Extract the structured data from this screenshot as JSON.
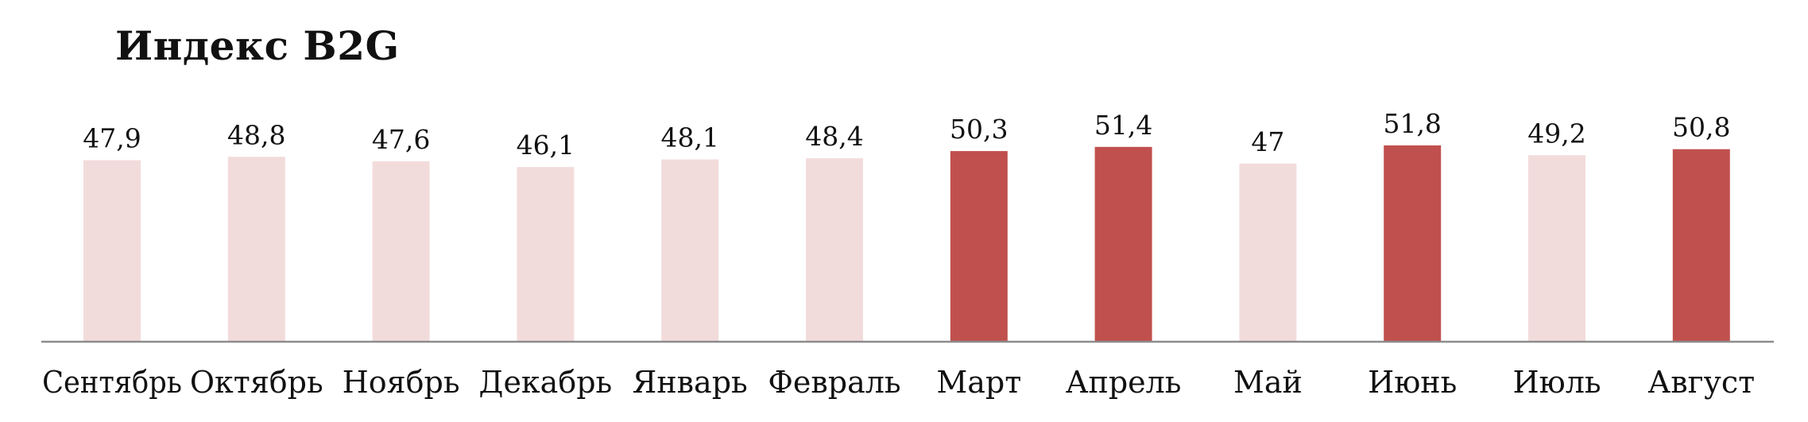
{
  "chart_data": {
    "type": "bar",
    "title": "Индекс B2G",
    "categories": [
      "Сентябрь",
      "Октябрь",
      "Ноябрь",
      "Декабрь",
      "Январь",
      "Февраль",
      "Март",
      "Апрель",
      "Май",
      "Июнь",
      "Июль",
      "Август"
    ],
    "values": [
      47.9,
      48.8,
      47.6,
      46.1,
      48.1,
      48.4,
      50.3,
      51.4,
      47.0,
      51.8,
      49.2,
      50.8
    ],
    "value_labels": [
      "47,9",
      "48,8",
      "47,6",
      "46,1",
      "48,1",
      "48,4",
      "50,3",
      "51,4",
      "47",
      "51,8",
      "49,2",
      "50,8"
    ],
    "xlabel": "",
    "ylabel": "",
    "ylim": [
      0,
      52
    ],
    "grid": false,
    "legend": "none",
    "colors": {
      "below_50": "#f2dcdb",
      "above_50": "#c0504d",
      "axis": "#8c8c8c"
    },
    "threshold": 50
  }
}
